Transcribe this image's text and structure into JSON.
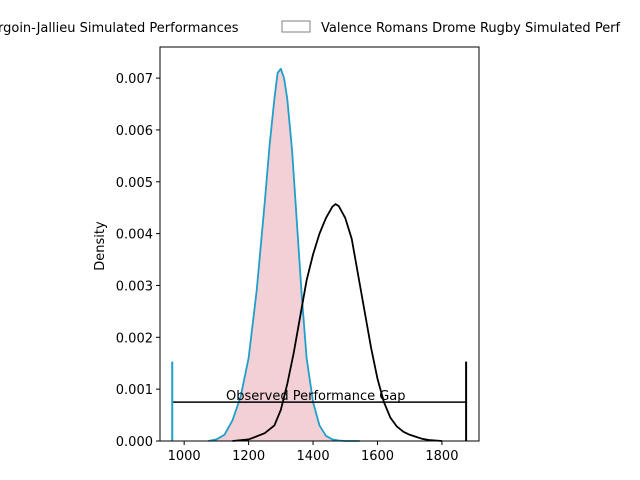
{
  "chart_data": {
    "type": "area",
    "title": "",
    "xlabel": "",
    "ylabel": "Density",
    "xlim": [
      925,
      1915
    ],
    "ylim": [
      0,
      0.0076
    ],
    "x_ticks": [
      1000,
      1200,
      1400,
      1600,
      1800
    ],
    "y_ticks": [
      0.0,
      0.001,
      0.002,
      0.003,
      0.004,
      0.005,
      0.006,
      0.007
    ],
    "x_tick_labels": [
      "1000",
      "1200",
      "1400",
      "1600",
      "1800"
    ],
    "y_tick_labels": [
      "0.000",
      "0.001",
      "0.002",
      "0.003",
      "0.004",
      "0.005",
      "0.006",
      "0.007"
    ],
    "grid": false,
    "legend_position": "top-center",
    "series": [
      {
        "name": "CS Bourgoin-Jallieu Simulated Performances",
        "legend_label": "rgoin-Jallieu Simulated Performances",
        "kind": "filled-density",
        "line_color": "#1f9fc9",
        "fill_color": "#f2d0d5",
        "x": [
          1075,
          1100,
          1125,
          1150,
          1175,
          1200,
          1225,
          1250,
          1265,
          1280,
          1290,
          1300,
          1310,
          1320,
          1335,
          1350,
          1365,
          1380,
          1400,
          1420,
          1440,
          1460,
          1480,
          1500,
          1520,
          1545
        ],
        "y": [
          0.0,
          3e-05,
          0.00012,
          0.0004,
          0.00085,
          0.0016,
          0.0029,
          0.0046,
          0.0057,
          0.0066,
          0.0071,
          0.00718,
          0.007,
          0.0066,
          0.0056,
          0.0042,
          0.0028,
          0.0016,
          0.00075,
          0.0003,
          0.0001,
          3e-05,
          1e-05,
          0.0,
          0.0,
          0.0
        ]
      },
      {
        "name": "Valence Romans Drome Rugby Simulated Performances",
        "legend_label": "Valence Romans Drome Rugby Simulated Perf",
        "kind": "line-density",
        "line_color": "#000000",
        "x": [
          1150,
          1200,
          1250,
          1280,
          1300,
          1320,
          1340,
          1360,
          1380,
          1400,
          1420,
          1440,
          1460,
          1470,
          1480,
          1500,
          1520,
          1540,
          1560,
          1580,
          1600,
          1620,
          1640,
          1660,
          1680,
          1700,
          1720,
          1740,
          1760,
          1780,
          1800
        ],
        "y": [
          0.0,
          3e-05,
          0.00015,
          0.0003,
          0.0006,
          0.0011,
          0.0017,
          0.0024,
          0.0031,
          0.0036,
          0.004,
          0.0043,
          0.00452,
          0.00457,
          0.00453,
          0.0043,
          0.0039,
          0.0032,
          0.0025,
          0.0018,
          0.0012,
          0.00075,
          0.00045,
          0.00028,
          0.00018,
          0.00012,
          8e-05,
          4e-05,
          2e-05,
          1e-05,
          0.0
        ]
      }
    ],
    "annotation": {
      "text": "Observed Performance Gap",
      "x_start": 963,
      "x_end": 1875,
      "y": 0.00075,
      "start_color": "#1f9fc9",
      "end_color": "#000000",
      "marker_height": 0.00153,
      "label_x": 1130,
      "label_y": 0.00077
    }
  }
}
